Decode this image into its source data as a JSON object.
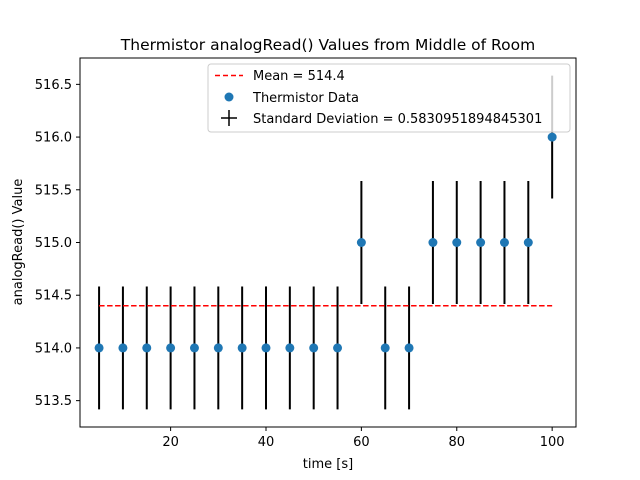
{
  "chart_data": {
    "type": "scatter",
    "title": "Thermistor analogRead() Values from Middle of Room",
    "xlabel": "time [s]",
    "ylabel": "analogRead() Value",
    "xlim": [
      1,
      105
    ],
    "ylim": [
      513.25,
      516.75
    ],
    "xticks": [
      20,
      40,
      60,
      80,
      100
    ],
    "yticks": [
      513.5,
      514.0,
      514.5,
      515.0,
      515.5,
      516.0,
      516.5
    ],
    "ytick_labels": [
      "513.5",
      "514.0",
      "514.5",
      "515.0",
      "515.5",
      "516.0",
      "516.5"
    ],
    "grid": false,
    "legend_position": "top-right",
    "series": [
      {
        "name": "Thermistor Data",
        "kind": "scatter",
        "color": "#1f77b4",
        "x": [
          5,
          10,
          15,
          20,
          25,
          30,
          35,
          40,
          45,
          50,
          55,
          60,
          65,
          70,
          75,
          80,
          85,
          90,
          95,
          100
        ],
        "y": [
          514,
          514,
          514,
          514,
          514,
          514,
          514,
          514,
          514,
          514,
          514,
          515,
          514,
          514,
          515,
          515,
          515,
          515,
          515,
          516
        ]
      },
      {
        "name": "Mean = 514.4",
        "kind": "line",
        "style": "dashed",
        "color": "#ff0000",
        "x": [
          5,
          100
        ],
        "y": [
          514.4,
          514.4
        ]
      },
      {
        "name": "Standard Deviation = 0.5830951894845301",
        "kind": "errorbar",
        "color": "#000000",
        "error": 0.5830951894845301
      }
    ]
  }
}
